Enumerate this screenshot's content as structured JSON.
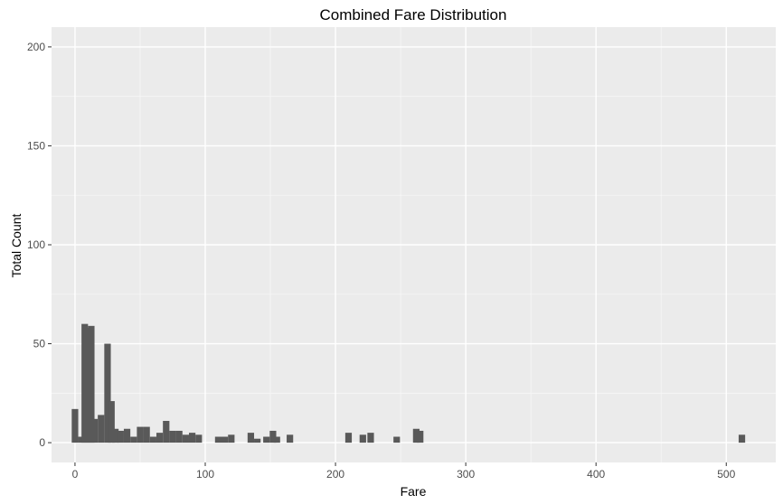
{
  "colors": {
    "panel_background": "#ebebeb",
    "grid_major": "#ffffff",
    "grid_minor": "#f7f7f7",
    "bar_fill": "#595959",
    "tick_text": "#4d4d4d",
    "tick_mark": "#333333"
  },
  "chart_data": {
    "type": "bar",
    "histogram": true,
    "title": "Combined Fare Distribution",
    "xlabel": "Fare",
    "ylabel": "Total Count",
    "xlim": [
      -18,
      538
    ],
    "ylim": [
      -10,
      210
    ],
    "x_ticks": [
      0,
      100,
      200,
      300,
      400,
      500
    ],
    "x_tick_labels": [
      "0",
      "100",
      "200",
      "300",
      "400",
      "500"
    ],
    "y_ticks": [
      0,
      50,
      100,
      150,
      200
    ],
    "y_tick_labels": [
      "0",
      "50",
      "100",
      "150",
      "200"
    ],
    "grid": true,
    "bin_width": 5,
    "bins": [
      {
        "x": 0,
        "count": 17
      },
      {
        "x": 5,
        "count": 3
      },
      {
        "x": 7.5,
        "count": 60
      },
      {
        "x": 10,
        "count": 58
      },
      {
        "x": 12.5,
        "count": 59
      },
      {
        "x": 15,
        "count": 12
      },
      {
        "x": 20,
        "count": 14
      },
      {
        "x": 25,
        "count": 50
      },
      {
        "x": 28,
        "count": 21
      },
      {
        "x": 31,
        "count": 7
      },
      {
        "x": 35,
        "count": 6
      },
      {
        "x": 40,
        "count": 7
      },
      {
        "x": 45,
        "count": 3
      },
      {
        "x": 50,
        "count": 8
      },
      {
        "x": 55,
        "count": 8
      },
      {
        "x": 60,
        "count": 3
      },
      {
        "x": 65,
        "count": 5
      },
      {
        "x": 70,
        "count": 11
      },
      {
        "x": 75,
        "count": 6
      },
      {
        "x": 80,
        "count": 6
      },
      {
        "x": 85,
        "count": 4
      },
      {
        "x": 90,
        "count": 5
      },
      {
        "x": 95,
        "count": 4
      },
      {
        "x": 110,
        "count": 3
      },
      {
        "x": 115,
        "count": 3
      },
      {
        "x": 120,
        "count": 4
      },
      {
        "x": 135,
        "count": 5
      },
      {
        "x": 140,
        "count": 2
      },
      {
        "x": 147,
        "count": 3
      },
      {
        "x": 152,
        "count": 6
      },
      {
        "x": 155,
        "count": 3
      },
      {
        "x": 165,
        "count": 4
      },
      {
        "x": 210,
        "count": 5
      },
      {
        "x": 221,
        "count": 4
      },
      {
        "x": 227,
        "count": 5
      },
      {
        "x": 247,
        "count": 3
      },
      {
        "x": 262,
        "count": 7
      },
      {
        "x": 265,
        "count": 6
      },
      {
        "x": 512,
        "count": 4
      }
    ]
  }
}
